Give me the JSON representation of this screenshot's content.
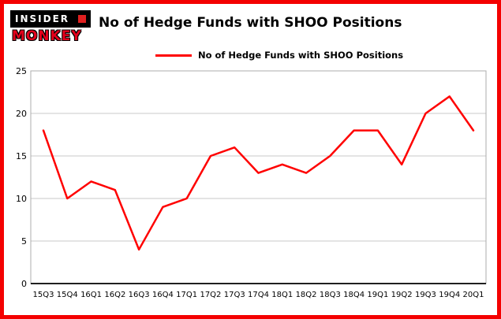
{
  "logo": {
    "line1": "INSIDER",
    "line2": "MONKEY"
  },
  "header": {
    "title": "No of Hedge Funds with SHOO Positions"
  },
  "legend": {
    "label": "No of Hedge Funds with SHOO Positions",
    "color": "#ff0000"
  },
  "chart_data": {
    "type": "line",
    "title": "No of Hedge Funds with SHOO Positions",
    "categories": [
      "15Q3",
      "15Q4",
      "16Q1",
      "16Q2",
      "16Q3",
      "16Q4",
      "17Q1",
      "17Q2",
      "17Q3",
      "17Q4",
      "18Q1",
      "18Q2",
      "18Q3",
      "18Q4",
      "19Q1",
      "19Q2",
      "19Q3",
      "19Q4",
      "20Q1"
    ],
    "values": [
      18,
      10,
      12,
      11,
      4,
      9,
      10,
      15,
      16,
      13,
      14,
      13,
      15,
      18,
      18,
      14,
      20,
      22,
      18
    ],
    "xlabel": "",
    "ylabel": "",
    "ylim": [
      0,
      25
    ],
    "yticks": [
      0,
      5,
      10,
      15,
      20,
      25
    ],
    "grid": true,
    "legend_position": "top-left",
    "line_color": "#ff0000",
    "grid_color": "#c9c9c9",
    "frame_color": "#f40000"
  }
}
